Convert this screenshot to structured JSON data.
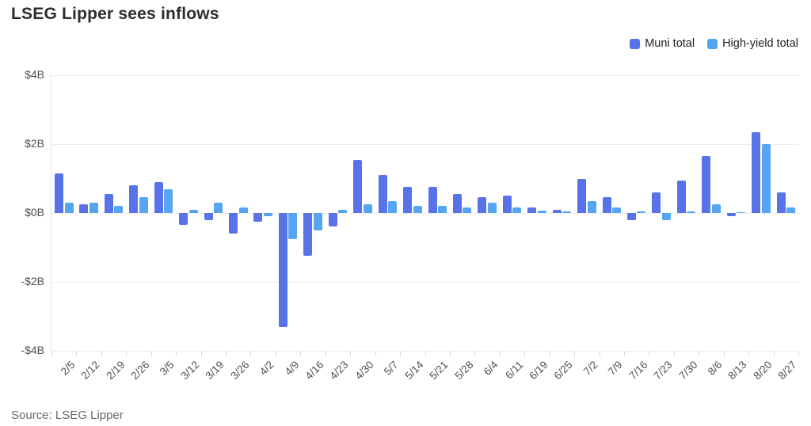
{
  "title": "LSEG Lipper sees inflows",
  "source": "Source: LSEG Lipper",
  "colors": {
    "muni": "#5873e8",
    "high_yield": "#55a5f0",
    "grid": "#ececec"
  },
  "chart_data": {
    "type": "bar",
    "title": "LSEG Lipper sees inflows",
    "unit": "billions USD",
    "xlabel": "",
    "ylabel": "",
    "ylim": [
      -4,
      4
    ],
    "grid": "horizontal",
    "legend_position": "top-right",
    "y_ticks": [
      "$4B",
      "$2B",
      "$0B",
      "-$2B",
      "-$4B"
    ],
    "categories": [
      "2/5",
      "2/12",
      "2/19",
      "2/26",
      "3/5",
      "3/12",
      "3/19",
      "3/26",
      "4/2",
      "4/9",
      "4/16",
      "4/23",
      "4/30",
      "5/7",
      "5/14",
      "5/21",
      "5/28",
      "6/4",
      "6/11",
      "6/19",
      "6/25",
      "7/2",
      "7/9",
      "7/16",
      "7/23",
      "7/30",
      "8/6",
      "8/13",
      "8/20",
      "8/27"
    ],
    "series": [
      {
        "name": "Muni total",
        "color": "#5873e8",
        "values": [
          1.15,
          0.25,
          0.55,
          0.8,
          0.9,
          -0.35,
          -0.2,
          -0.6,
          -0.25,
          -3.3,
          -1.25,
          -0.4,
          1.55,
          1.1,
          0.75,
          0.75,
          0.55,
          0.45,
          0.5,
          0.15,
          0.1,
          1.0,
          0.45,
          -0.2,
          0.6,
          0.95,
          1.65,
          -0.1,
          2.35,
          0.6
        ]
      },
      {
        "name": "High-yield total",
        "color": "#55a5f0",
        "values": [
          0.3,
          0.3,
          0.2,
          0.45,
          0.7,
          0.1,
          0.3,
          0.15,
          -0.1,
          -0.75,
          -0.5,
          0.1,
          0.25,
          0.35,
          0.2,
          0.2,
          0.15,
          0.3,
          0.15,
          0.07,
          0.05,
          0.35,
          0.15,
          0.05,
          -0.2,
          0.05,
          0.25,
          0.03,
          2.0,
          0.15
        ]
      }
    ]
  }
}
